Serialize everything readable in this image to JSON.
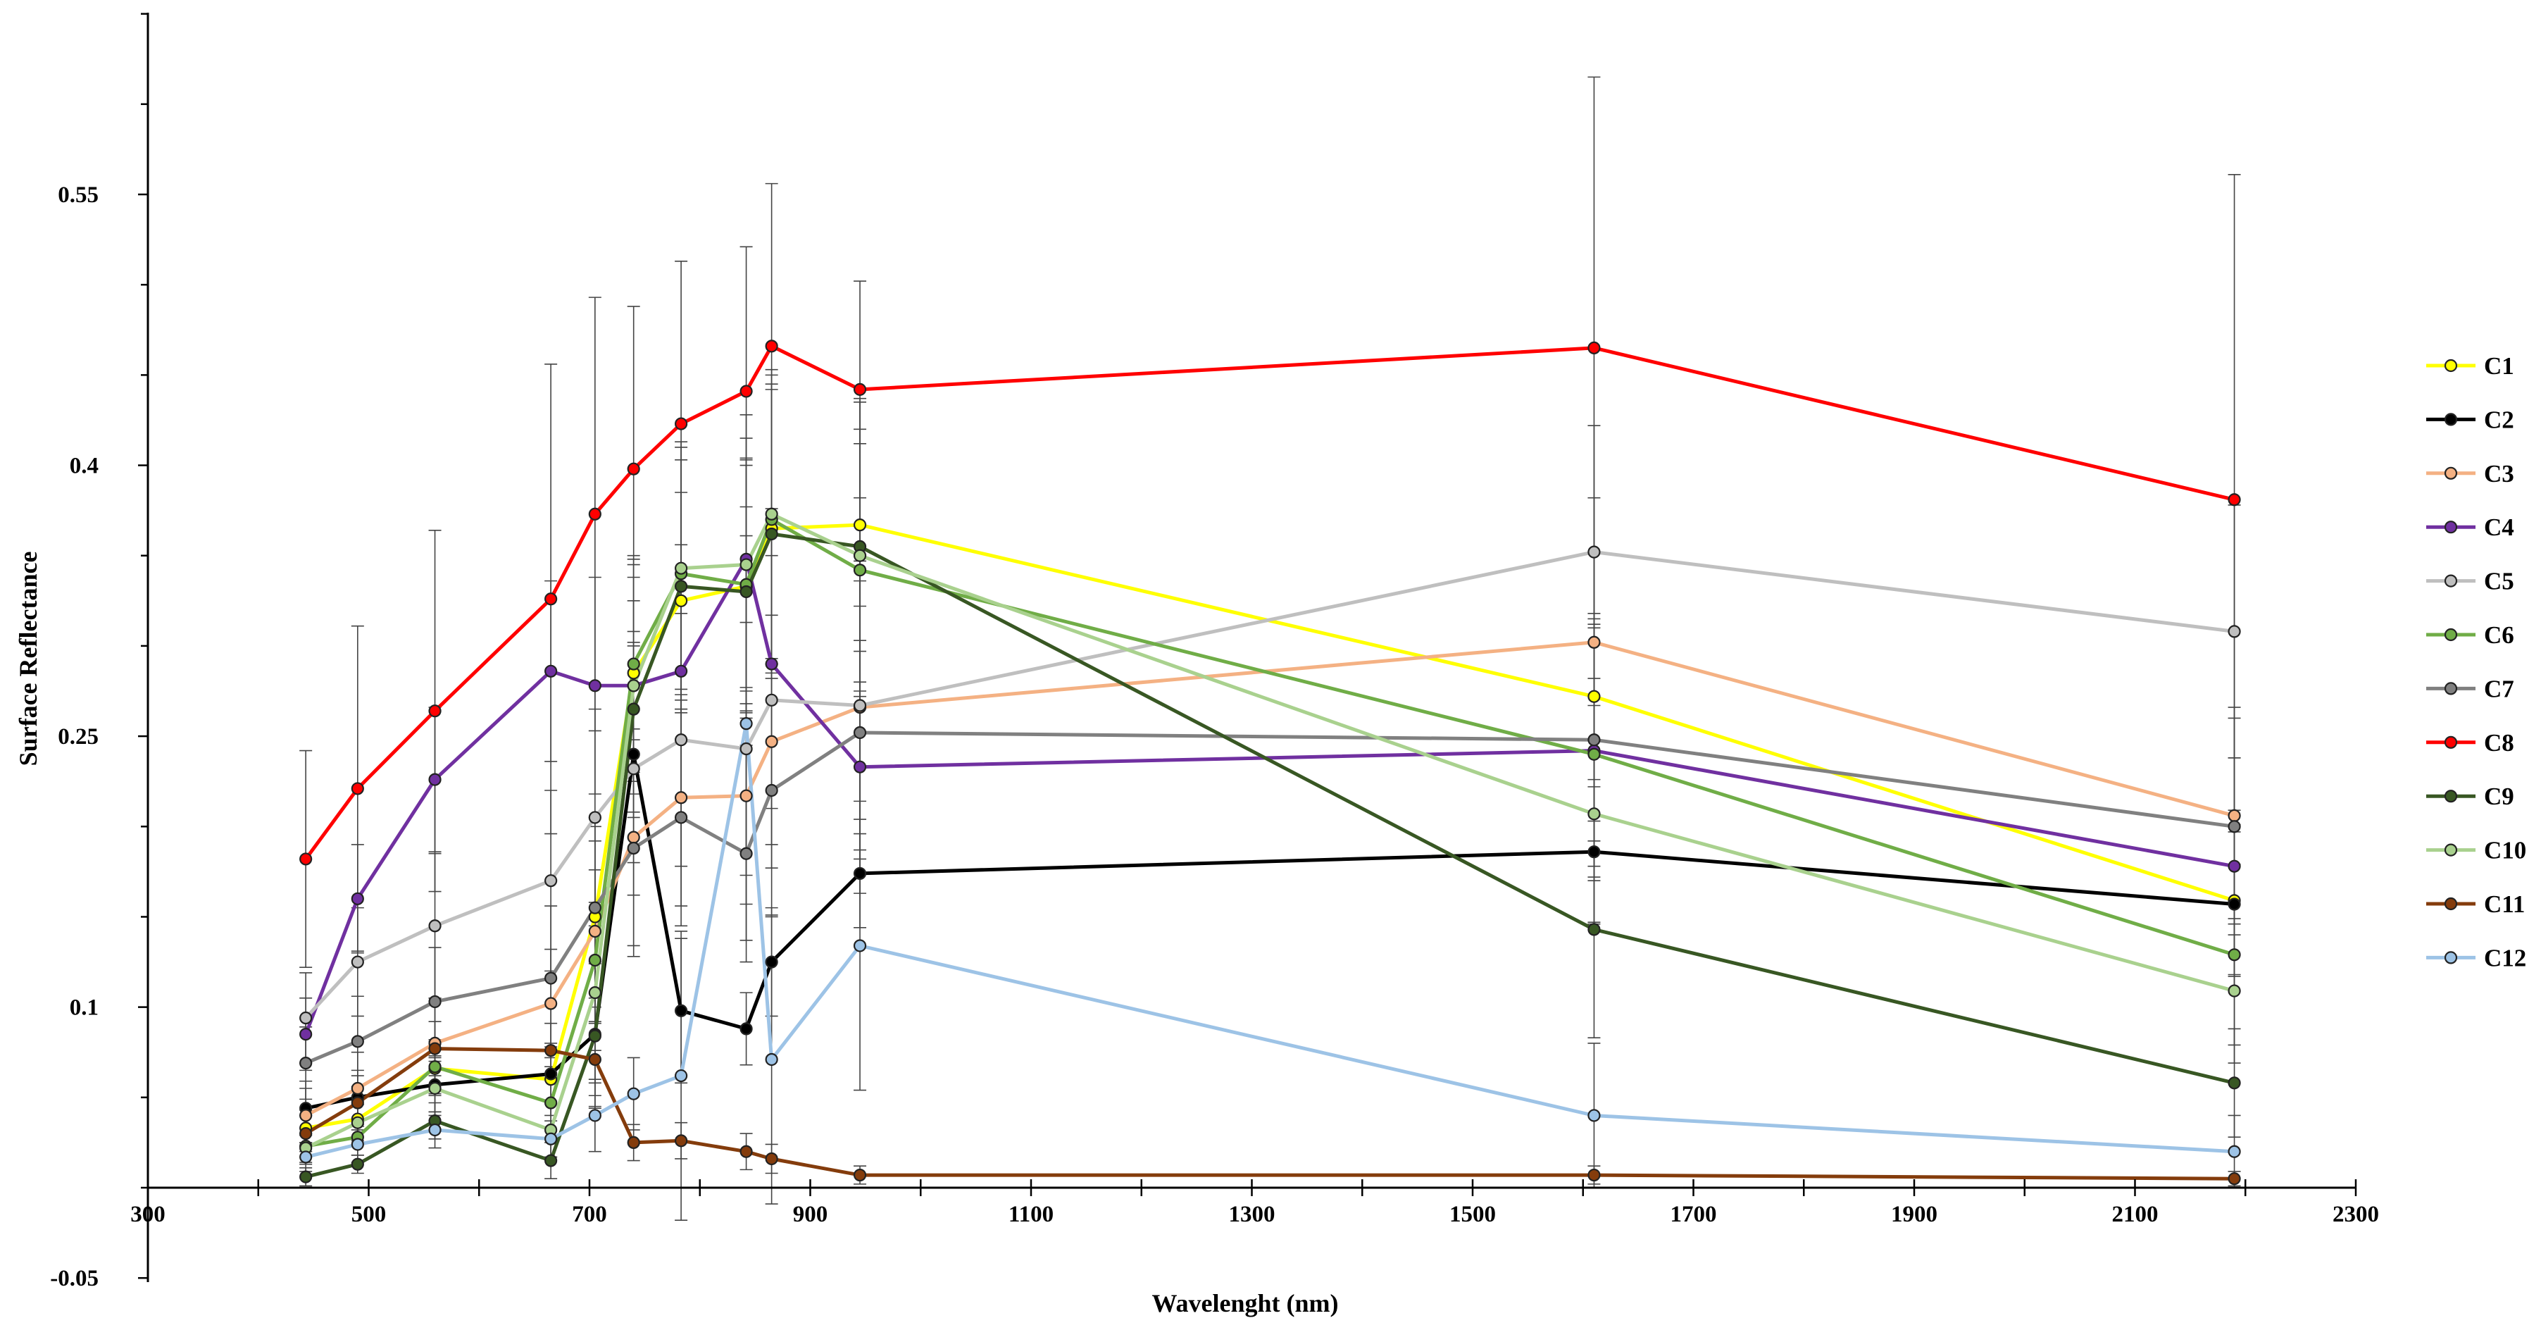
{
  "chart_data": {
    "type": "line",
    "title": "",
    "xlabel": "Wavelenght (nm)",
    "ylabel": "Surface Reflectance",
    "xlim": [
      300,
      2300
    ],
    "ylim": [
      -0.05,
      0.65
    ],
    "x_ticks": [
      300,
      500,
      700,
      900,
      1100,
      1300,
      1500,
      1700,
      1900,
      2100,
      2300
    ],
    "y_ticks": [
      -0.05,
      0.1,
      0.25,
      0.4,
      0.55
    ],
    "y_tick_labels": [
      "-0.05",
      "0.1",
      "0.25",
      "0.4",
      "0.55"
    ],
    "grid": false,
    "legend_position": "right",
    "x": [
      443,
      490,
      560,
      665,
      705,
      740,
      783,
      842,
      865,
      945,
      1610,
      2190
    ],
    "series": [
      {
        "name": "C1",
        "color": "#ffff00",
        "values": [
          0.033,
          0.038,
          0.066,
          0.06,
          0.15,
          0.285,
          0.325,
          0.333,
          0.365,
          0.367,
          0.272,
          0.159
        ],
        "errors": [
          0.01,
          0.01,
          0.015,
          0.02,
          0.05,
          0.06,
          0.06,
          0.07,
          0.08,
          0.07,
          0.08,
          0.05
        ]
      },
      {
        "name": "C2",
        "color": "#000000",
        "values": [
          0.044,
          0.05,
          0.057,
          0.063,
          0.085,
          0.24,
          0.098,
          0.088,
          0.125,
          0.174,
          0.186,
          0.157
        ],
        "errors": [
          0.015,
          0.015,
          0.015,
          0.015,
          0.04,
          0.06,
          0.04,
          0.02,
          0.03,
          0.03,
          0.04,
          0.04
        ]
      },
      {
        "name": "C3",
        "color": "#f4b183",
        "values": [
          0.04,
          0.055,
          0.08,
          0.102,
          0.142,
          0.194,
          0.216,
          0.217,
          0.247,
          0.266,
          0.302,
          0.206
        ],
        "errors": [
          0.015,
          0.02,
          0.025,
          0.03,
          0.05,
          0.06,
          0.06,
          0.06,
          0.07,
          0.07,
          0.08,
          0.06
        ]
      },
      {
        "name": "C4",
        "color": "#7030a0",
        "values": [
          0.085,
          0.16,
          0.226,
          0.286,
          0.278,
          0.278,
          0.286,
          0.348,
          0.29,
          0.233,
          0.242,
          0.178
        ],
        "errors": [
          0.02,
          0.03,
          0.04,
          0.05,
          0.06,
          0.07,
          0.07,
          0.08,
          0.08,
          0.07,
          0.07,
          0.06
        ]
      },
      {
        "name": "C5",
        "color": "#bfbfbf",
        "values": [
          0.094,
          0.125,
          0.145,
          0.17,
          0.205,
          0.232,
          0.248,
          0.243,
          0.27,
          0.267,
          0.352,
          0.308
        ],
        "errors": [
          0.025,
          0.03,
          0.04,
          0.05,
          0.06,
          0.07,
          0.07,
          0.07,
          0.08,
          0.08,
          0.07,
          0.07
        ]
      },
      {
        "name": "C6",
        "color": "#70ad47",
        "values": [
          0.023,
          0.028,
          0.067,
          0.047,
          0.126,
          0.29,
          0.34,
          0.334,
          0.37,
          0.342,
          0.24,
          0.129
        ],
        "errors": [
          0.01,
          0.01,
          0.015,
          0.02,
          0.05,
          0.06,
          0.07,
          0.07,
          0.08,
          0.07,
          0.07,
          0.05
        ]
      },
      {
        "name": "C7",
        "color": "#808080",
        "values": [
          0.069,
          0.081,
          0.103,
          0.116,
          0.155,
          0.188,
          0.205,
          0.185,
          0.22,
          0.252,
          0.248,
          0.2
        ],
        "errors": [
          0.02,
          0.025,
          0.03,
          0.04,
          0.05,
          0.06,
          0.06,
          0.06,
          0.07,
          0.07,
          0.07,
          0.06
        ]
      },
      {
        "name": "C8",
        "color": "#ff0000",
        "values": [
          0.182,
          0.221,
          0.264,
          0.326,
          0.373,
          0.398,
          0.423,
          0.441,
          0.466,
          0.442,
          0.465,
          0.381
        ],
        "errors": [
          0.06,
          0.09,
          0.1,
          0.13,
          0.12,
          0.09,
          0.09,
          0.08,
          0.09,
          0.06,
          0.15,
          0.18
        ]
      },
      {
        "name": "C9",
        "color": "#385723",
        "values": [
          0.006,
          0.013,
          0.037,
          0.015,
          0.084,
          0.265,
          0.333,
          0.33,
          0.362,
          0.355,
          0.143,
          0.058
        ],
        "errors": [
          0.005,
          0.005,
          0.01,
          0.01,
          0.04,
          0.06,
          0.07,
          0.07,
          0.08,
          0.08,
          0.06,
          0.03
        ]
      },
      {
        "name": "C10",
        "color": "#a9d18e",
        "values": [
          0.022,
          0.036,
          0.055,
          0.032,
          0.108,
          0.278,
          0.343,
          0.345,
          0.373,
          0.35,
          0.207,
          0.109
        ],
        "errors": [
          0.008,
          0.01,
          0.015,
          0.015,
          0.05,
          0.06,
          0.07,
          0.07,
          0.08,
          0.07,
          0.06,
          0.04
        ]
      },
      {
        "name": "C11",
        "color": "#843c0c",
        "values": [
          0.03,
          0.047,
          0.077,
          0.076,
          0.071,
          0.025,
          0.026,
          0.02,
          0.016,
          0.007,
          0.007,
          0.005
        ],
        "errors": [
          0.01,
          0.015,
          0.015,
          0.015,
          0.02,
          0.01,
          0.01,
          0.01,
          0.008,
          0.005,
          0.005,
          0.004
        ]
      },
      {
        "name": "C12",
        "color": "#9dc3e6",
        "values": [
          0.017,
          0.024,
          0.032,
          0.027,
          0.04,
          0.052,
          0.062,
          0.257,
          0.071,
          0.134,
          0.04,
          0.02
        ],
        "errors": [
          0.008,
          0.01,
          0.01,
          0.01,
          0.02,
          0.02,
          0.08,
          0.12,
          0.08,
          0.08,
          0.04,
          0.02
        ]
      }
    ]
  }
}
